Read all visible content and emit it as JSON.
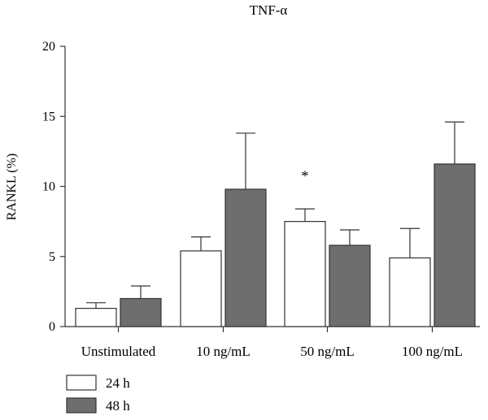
{
  "chart_data": {
    "type": "bar",
    "title": "TNF-α",
    "xlabel": "",
    "ylabel": "RANKL (%)",
    "ylim": [
      0,
      20
    ],
    "yticks": [
      0,
      5,
      10,
      15,
      20
    ],
    "categories": [
      "Unstimulated",
      "10 ng/mL",
      "50 ng/mL",
      "100 ng/mL"
    ],
    "series": [
      {
        "name": "24 h",
        "color": "#ffffff",
        "values": [
          1.3,
          5.4,
          7.5,
          4.9
        ],
        "errors": [
          0.4,
          1.0,
          0.9,
          2.1
        ]
      },
      {
        "name": "48 h",
        "color": "#6e6e6e",
        "values": [
          2.0,
          9.8,
          5.8,
          11.6
        ],
        "errors": [
          0.9,
          4.0,
          1.1,
          3.0
        ]
      }
    ],
    "annotations": [
      {
        "text": "*",
        "category_index": 2,
        "y": 11.0
      }
    ],
    "grid": false,
    "legend_position": "bottom-left"
  }
}
